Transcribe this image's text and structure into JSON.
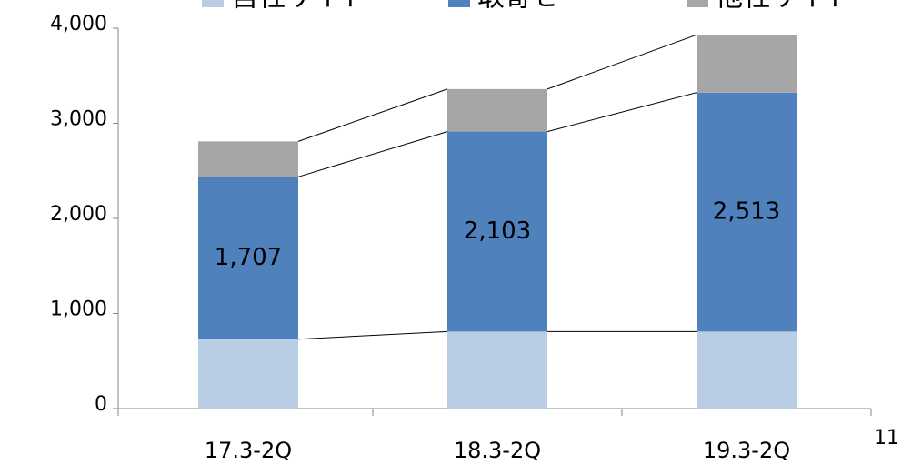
{
  "chart_data": {
    "type": "stacked_bar",
    "categories": [
      "17.3-2Q",
      "18.3-2Q",
      "19.3-2Q"
    ],
    "series": [
      {
        "name": "自社サイト",
        "color": "#b9cde5",
        "values": [
          730,
          810,
          810
        ]
      },
      {
        "name": "取寄せ",
        "color": "#4f81bd",
        "values": [
          1707,
          2103,
          2513
        ],
        "value_labels": [
          "1,707",
          "2,103",
          "2,513"
        ]
      },
      {
        "name": "他社サイト",
        "color": "#a6a6a6",
        "values": [
          373,
          447,
          607
        ]
      }
    ],
    "ylim": [
      0,
      4000
    ],
    "yticks": [
      0,
      {
        "value": 1000,
        "label": "1,000"
      },
      {
        "value": 2000,
        "label": "2,000"
      },
      {
        "value": 3000,
        "label": "3,000"
      },
      {
        "value": 4000,
        "label": "4,000"
      }
    ],
    "legend": "top",
    "page_number": "11"
  }
}
